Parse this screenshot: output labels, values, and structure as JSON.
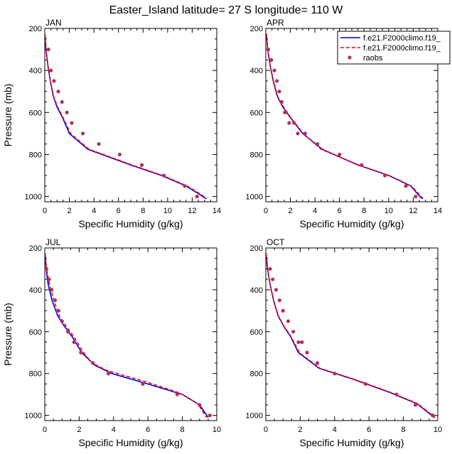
{
  "figure": {
    "title": "Easter_Island  latitude= 27 S longitude= 110 W"
  },
  "legend": {
    "placement": "top-right of APR panel",
    "entries": [
      {
        "label": "f.e21.F2000climo.f19_",
        "color": "#0000dd",
        "style": "solid"
      },
      {
        "label": "f.e21.F2000climo.f19_",
        "color": "#ff0000",
        "style": "dashed"
      },
      {
        "label": "raobs",
        "color": "#b03060",
        "style": "marker"
      }
    ]
  },
  "chart_data": [
    {
      "type": "line",
      "panel": "JAN",
      "xlabel": "Specific Humidity (g/kg)",
      "ylabel": "Pressure (mb)",
      "xlim": [
        0,
        14
      ],
      "ylim": [
        1025,
        200
      ],
      "xticks": [
        0,
        2,
        4,
        6,
        8,
        10,
        12,
        14
      ],
      "yticks": [
        200,
        400,
        600,
        800,
        1000
      ],
      "series": [
        {
          "name": "f.e21.F2000climo.f19_",
          "color": "#0000dd",
          "style": "solid",
          "x": [
            0.02,
            0.1,
            0.25,
            0.45,
            0.7,
            1.0,
            1.45,
            2.0,
            3.5,
            7.0,
            9.5,
            11.5,
            12.6,
            13.1
          ],
          "y": [
            225,
            300,
            375,
            450,
            525,
            575,
            625,
            700,
            775,
            850,
            900,
            950,
            990,
            1010
          ]
        },
        {
          "name": "f.e21.F2000climo.f19_",
          "color": "#ff0000",
          "style": "dashed",
          "x": [
            0.02,
            0.1,
            0.25,
            0.45,
            0.72,
            1.05,
            1.5,
            2.1,
            3.6,
            7.1,
            9.6,
            11.6,
            12.7,
            13.2
          ],
          "y": [
            225,
            300,
            375,
            450,
            525,
            575,
            625,
            700,
            775,
            850,
            900,
            950,
            990,
            1010
          ]
        },
        {
          "name": "raobs",
          "color": "#b03060",
          "style": "marker",
          "x": [
            0.3,
            0.5,
            0.75,
            1.1,
            1.4,
            1.8,
            2.2,
            3.1,
            4.4,
            6.1,
            7.9,
            9.7,
            11.4,
            12.4
          ],
          "y": [
            300,
            400,
            450,
            500,
            550,
            600,
            650,
            700,
            750,
            800,
            850,
            900,
            950,
            1000
          ]
        }
      ]
    },
    {
      "type": "line",
      "panel": "APR",
      "xlabel": "Specific Humidity (g/kg)",
      "ylabel": "",
      "xlim": [
        0,
        14
      ],
      "ylim": [
        1025,
        200
      ],
      "xticks": [
        0,
        2,
        4,
        6,
        8,
        10,
        12,
        14
      ],
      "yticks": [
        200,
        400,
        600,
        800,
        1000
      ],
      "series": [
        {
          "name": "f.e21.F2000climo.f19_",
          "color": "#0000dd",
          "style": "solid",
          "x": [
            0.05,
            0.15,
            0.35,
            0.6,
            0.95,
            1.4,
            2.0,
            3.0,
            4.6,
            7.5,
            10.0,
            11.8,
            12.7
          ],
          "y": [
            225,
            300,
            375,
            450,
            525,
            575,
            625,
            700,
            775,
            850,
            900,
            950,
            1010
          ]
        },
        {
          "name": "f.e21.F2000climo.f19_",
          "color": "#ff0000",
          "style": "dashed",
          "x": [
            0.05,
            0.15,
            0.35,
            0.62,
            0.98,
            1.45,
            2.05,
            3.05,
            4.5,
            7.55,
            10.05,
            11.85,
            12.8
          ],
          "y": [
            225,
            300,
            375,
            450,
            525,
            575,
            625,
            700,
            775,
            850,
            900,
            950,
            1010
          ]
        },
        {
          "name": "raobs",
          "color": "#b03060",
          "style": "marker",
          "x": [
            0.2,
            0.45,
            0.7,
            0.9,
            1.1,
            1.3,
            1.55,
            1.9,
            2.3,
            2.6,
            3.2,
            4.2,
            6.0,
            7.8,
            9.7,
            11.4,
            12.2
          ],
          "y": [
            300,
            350,
            400,
            450,
            500,
            550,
            600,
            650,
            650,
            700,
            700,
            750,
            800,
            850,
            900,
            950,
            1000
          ]
        }
      ]
    },
    {
      "type": "line",
      "panel": "JUL",
      "xlabel": "Specific Humidity (g/kg)",
      "ylabel": "Pressure (mb)",
      "xlim": [
        0,
        10
      ],
      "ylim": [
        1025,
        200
      ],
      "xticks": [
        0,
        2,
        4,
        6,
        8,
        10
      ],
      "yticks": [
        200,
        400,
        600,
        800,
        1000
      ],
      "series": [
        {
          "name": "f.e21.F2000climo.f19_",
          "color": "#0000dd",
          "style": "solid",
          "x": [
            0.02,
            0.08,
            0.2,
            0.42,
            0.75,
            1.15,
            1.6,
            2.15,
            2.9,
            3.9,
            6.0,
            8.0,
            9.0,
            9.5
          ],
          "y": [
            225,
            300,
            375,
            450,
            525,
            575,
            625,
            700,
            760,
            800,
            850,
            900,
            950,
            1010
          ]
        },
        {
          "name": "f.e21.F2000climo.f19_",
          "color": "#ff0000",
          "style": "dashed",
          "x": [
            0.02,
            0.1,
            0.28,
            0.52,
            0.85,
            1.25,
            1.7,
            2.25,
            2.75,
            3.6,
            5.9,
            7.9,
            8.9,
            9.4
          ],
          "y": [
            225,
            300,
            375,
            450,
            525,
            575,
            625,
            700,
            750,
            785,
            840,
            895,
            945,
            1010
          ]
        },
        {
          "name": "raobs",
          "color": "#b03060",
          "style": "marker",
          "x": [
            0.1,
            0.25,
            0.4,
            0.6,
            0.8,
            1.0,
            1.35,
            1.7,
            2.1,
            2.8,
            3.7,
            5.7,
            7.7,
            9.0,
            9.6
          ],
          "y": [
            300,
            350,
            400,
            450,
            500,
            550,
            600,
            650,
            700,
            750,
            800,
            850,
            900,
            950,
            1000
          ]
        }
      ]
    },
    {
      "type": "line",
      "panel": "OCT",
      "xlabel": "Specific Humidity (g/kg)",
      "ylabel": "",
      "xlim": [
        0,
        10
      ],
      "ylim": [
        1025,
        200
      ],
      "xticks": [
        0,
        2,
        4,
        6,
        8,
        10
      ],
      "yticks": [
        200,
        400,
        600,
        800,
        1000
      ],
      "series": [
        {
          "name": "f.e21.F2000climo.f19_",
          "color": "#0000dd",
          "style": "solid",
          "x": [
            0.02,
            0.1,
            0.25,
            0.45,
            0.72,
            1.05,
            1.45,
            1.9,
            3.1,
            5.0,
            7.2,
            8.8,
            9.8
          ],
          "y": [
            225,
            300,
            375,
            450,
            525,
            575,
            625,
            700,
            775,
            825,
            890,
            945,
            1010
          ]
        },
        {
          "name": "f.e21.F2000climo.f19_",
          "color": "#ff0000",
          "style": "dashed",
          "x": [
            0.02,
            0.1,
            0.25,
            0.45,
            0.73,
            1.07,
            1.48,
            1.95,
            3.15,
            5.05,
            7.25,
            8.85,
            9.85
          ],
          "y": [
            225,
            300,
            375,
            450,
            525,
            575,
            625,
            700,
            775,
            825,
            890,
            945,
            1010
          ]
        },
        {
          "name": "raobs",
          "color": "#b03060",
          "style": "marker",
          "x": [
            0.25,
            0.4,
            0.6,
            0.8,
            1.0,
            1.3,
            1.6,
            1.9,
            2.1,
            2.4,
            3.0,
            4.0,
            5.8,
            7.6,
            8.7,
            9.7
          ],
          "y": [
            300,
            350,
            400,
            450,
            500,
            550,
            600,
            650,
            650,
            700,
            750,
            800,
            850,
            900,
            950,
            1000
          ]
        }
      ]
    }
  ]
}
